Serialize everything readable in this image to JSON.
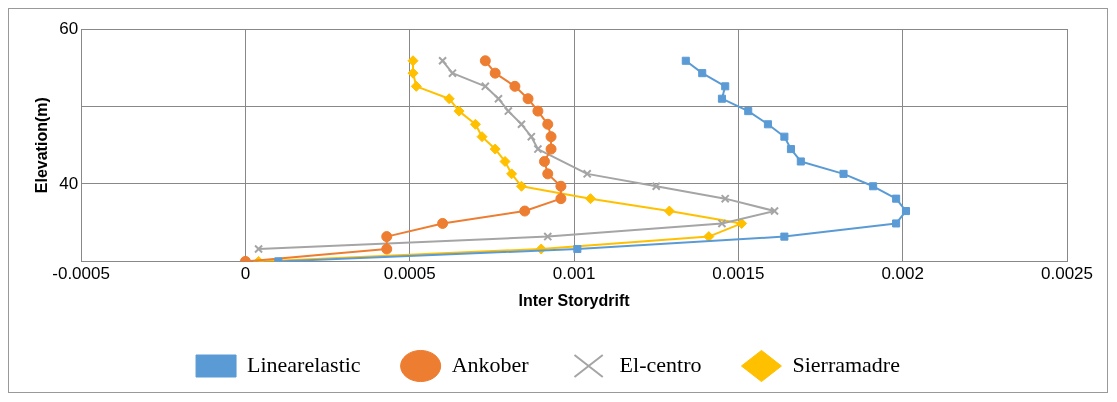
{
  "chart_data": {
    "type": "line",
    "xlabel": "Inter Storydrift",
    "ylabel": "Elevation(m)",
    "xlim": [
      -0.0005,
      0.0025
    ],
    "xticks": [
      -0.0005,
      0,
      0.0005,
      0.001,
      0.0015,
      0.002,
      0.0025
    ],
    "ylim": [
      30,
      60
    ],
    "yticks": [
      {
        "value": 30,
        "label": null
      },
      40,
      {
        "value": 50,
        "label": null
      },
      60
    ],
    "grid": true,
    "legend": "bottom",
    "series": [
      {
        "name": "Linearelastic",
        "color": "#5b9bd5",
        "marker": "square",
        "x": [
          0.0001,
          0.00101,
          0.00164,
          0.00198,
          0.00201,
          0.00198,
          0.00191,
          0.00182,
          0.00169,
          0.00166,
          0.00164,
          0.00159,
          0.00153,
          0.00145,
          0.00146,
          0.00139,
          0.00134
        ],
        "values": [
          30,
          31.6,
          33.2,
          34.9,
          36.5,
          38.1,
          39.7,
          41.3,
          42.9,
          44.5,
          46.1,
          47.7,
          49.4,
          51.0,
          52.6,
          54.3,
          55.9
        ]
      },
      {
        "name": "Ankober",
        "color": "#ed7d31",
        "marker": "circle",
        "x": [
          0,
          0.00043,
          0.00043,
          0.0006,
          0.00085,
          0.00096,
          0.00096,
          0.00092,
          0.00091,
          0.00093,
          0.00093,
          0.00092,
          0.00089,
          0.00086,
          0.00082,
          0.00076,
          0.00073
        ],
        "values": [
          30,
          31.6,
          33.2,
          34.9,
          36.5,
          38.1,
          39.7,
          41.3,
          42.9,
          44.5,
          46.1,
          47.7,
          49.4,
          51.0,
          52.6,
          54.3,
          55.9
        ]
      },
      {
        "name": "El-centro",
        "color": "#a5a5a5",
        "marker": "cross",
        "x": [
          null,
          4e-05,
          0.00092,
          0.00145,
          0.00161,
          0.00146,
          0.00125,
          0.00104,
          0.0009,
          0.00089,
          0.00087,
          0.00084,
          0.0008,
          0.00077,
          0.00073,
          0.00063,
          0.0006
        ],
        "values": [
          null,
          31.6,
          33.2,
          34.9,
          36.5,
          38.1,
          39.7,
          41.3,
          null,
          44.5,
          46.1,
          47.7,
          49.4,
          51.0,
          52.6,
          54.3,
          55.9
        ]
      },
      {
        "name": "Sierramadre",
        "color": "#ffc000",
        "marker": "diamond",
        "x": [
          4e-05,
          0.0009,
          0.00141,
          0.00151,
          0.00129,
          0.00105,
          0.00084,
          0.00081,
          0.00079,
          0.00076,
          0.00072,
          0.0007,
          0.00065,
          0.00062,
          0.00052,
          0.00051,
          0.00051
        ],
        "values": [
          30,
          31.6,
          33.2,
          34.9,
          36.5,
          38.1,
          39.7,
          41.3,
          42.9,
          44.5,
          46.1,
          47.7,
          49.4,
          51.0,
          52.6,
          54.3,
          55.9
        ]
      }
    ]
  }
}
